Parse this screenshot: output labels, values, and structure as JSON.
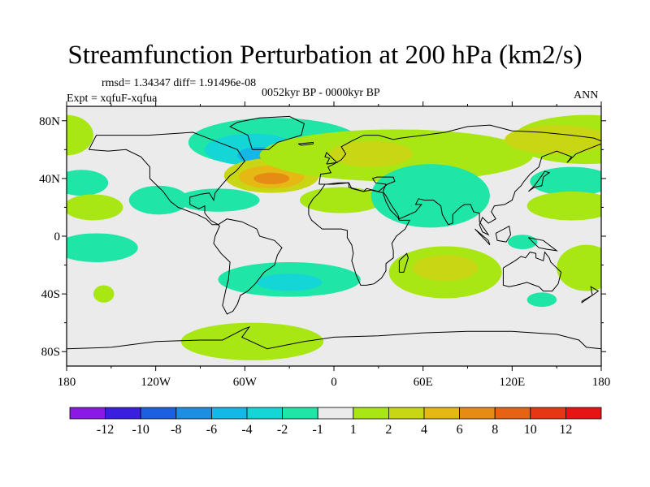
{
  "chart_data": {
    "type": "contour-map",
    "title": "Streamfunction Perturbation at 200 hPa (km2/s)",
    "stats_line": "rmsd= 1.34347  diff= 1.91496e-08",
    "expt_label": "Expt = xqfuF-xqfua",
    "period_label": "0052kyr BP - 0000kyr BP",
    "season_label": "ANN",
    "xlim": [
      -180,
      180
    ],
    "ylim": [
      -90,
      90
    ],
    "x_tick_values": [
      -180,
      -120,
      -60,
      0,
      60,
      120,
      180
    ],
    "x_tick_labels": [
      "180",
      "120W",
      "60W",
      "0",
      "60E",
      "120E",
      "180"
    ],
    "y_tick_values": [
      80,
      40,
      0,
      -40,
      -80
    ],
    "y_tick_labels": [
      "80N",
      "40N",
      "0",
      "40S",
      "80S"
    ],
    "colorbar": {
      "labels": [
        "-12",
        "-10",
        "-8",
        "-6",
        "-4",
        "-2",
        "-1",
        "1",
        "2",
        "4",
        "6",
        "8",
        "10",
        "12"
      ],
      "colors": [
        "#8a19e6",
        "#3b1fe0",
        "#1c5fe0",
        "#1c8fe3",
        "#14b8e6",
        "#14d6d6",
        "#1fe6a6",
        "#ebebeb",
        "#a8e614",
        "#c9d614",
        "#e6b814",
        "#e68c14",
        "#e66314",
        "#e63614",
        "#e61414"
      ]
    },
    "anomaly_regions": [
      {
        "lon": -40,
        "lat": 65,
        "rx": 58,
        "ry": 17,
        "level": "-1"
      },
      {
        "lon": -55,
        "lat": 60,
        "rx": 32,
        "ry": 11,
        "level": "-2"
      },
      {
        "lon": -50,
        "lat": 56,
        "rx": 15,
        "ry": 6,
        "level": "-4"
      },
      {
        "lon": -78,
        "lat": 25,
        "rx": 28,
        "ry": 8,
        "level": "-1"
      },
      {
        "lon": -42,
        "lat": 42,
        "rx": 32,
        "ry": 12,
        "level": "2"
      },
      {
        "lon": -42,
        "lat": 41,
        "rx": 22,
        "ry": 8,
        "level": "4"
      },
      {
        "lon": -42,
        "lat": 40,
        "rx": 12,
        "ry": 4,
        "level": "6"
      },
      {
        "lon": 42,
        "lat": 56,
        "rx": 92,
        "ry": 18,
        "level": "1"
      },
      {
        "lon": 25,
        "lat": 57,
        "rx": 28,
        "ry": 9,
        "level": "2"
      },
      {
        "lon": 170,
        "lat": 67,
        "rx": 50,
        "ry": 17,
        "level": "1"
      },
      {
        "lon": 150,
        "lat": 67,
        "rx": 35,
        "ry": 10,
        "level": "2"
      },
      {
        "lon": -180,
        "lat": 70,
        "rx": 18,
        "ry": 14,
        "level": "1"
      },
      {
        "lon": 160,
        "lat": 38,
        "rx": 28,
        "ry": 10,
        "level": "-1"
      },
      {
        "lon": -170,
        "lat": 37,
        "rx": 18,
        "ry": 9,
        "level": "-1"
      },
      {
        "lon": -162,
        "lat": 20,
        "rx": 20,
        "ry": 9,
        "level": "1"
      },
      {
        "lon": 160,
        "lat": 21,
        "rx": 30,
        "ry": 10,
        "level": "1"
      },
      {
        "lon": 5,
        "lat": 25,
        "rx": 28,
        "ry": 9,
        "level": "1"
      },
      {
        "lon": 65,
        "lat": 28,
        "rx": 40,
        "ry": 22,
        "level": "-1"
      },
      {
        "lon": -118,
        "lat": 25,
        "rx": 20,
        "ry": 10,
        "level": "-1"
      },
      {
        "lon": -160,
        "lat": -8,
        "rx": 28,
        "ry": 10,
        "level": "-1"
      },
      {
        "lon": -155,
        "lat": -40,
        "rx": 7,
        "ry": 6,
        "level": "1"
      },
      {
        "lon": -30,
        "lat": -30,
        "rx": 48,
        "ry": 12,
        "level": "-1"
      },
      {
        "lon": -30,
        "lat": -32,
        "rx": 22,
        "ry": 6,
        "level": "-2"
      },
      {
        "lon": 75,
        "lat": -25,
        "rx": 38,
        "ry": 18,
        "level": "1"
      },
      {
        "lon": 75,
        "lat": -22,
        "rx": 22,
        "ry": 9,
        "level": "2"
      },
      {
        "lon": 170,
        "lat": -22,
        "rx": 20,
        "ry": 16,
        "level": "1"
      },
      {
        "lon": 140,
        "lat": -44,
        "rx": 10,
        "ry": 5,
        "level": "-1"
      },
      {
        "lon": -55,
        "lat": -73,
        "rx": 48,
        "ry": 13,
        "level": "1"
      },
      {
        "lon": 127,
        "lat": -4,
        "rx": 10,
        "ry": 5,
        "level": "-1"
      }
    ]
  }
}
